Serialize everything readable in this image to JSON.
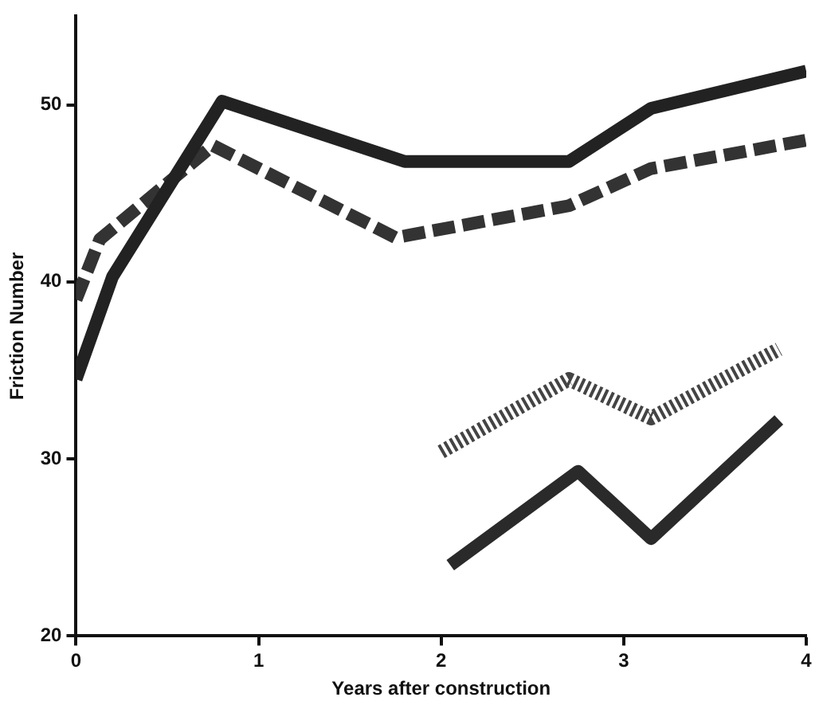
{
  "chart_data": {
    "type": "line",
    "xlabel": "Years after construction",
    "ylabel": "Friction Number",
    "xlim": [
      0,
      4
    ],
    "xticks": [
      0,
      1,
      2,
      3,
      4
    ],
    "ylim": [
      20,
      55
    ],
    "yticks": [
      20,
      30,
      40,
      50
    ],
    "grid": false,
    "legend": false,
    "marker": "none",
    "series": [
      {
        "color": "#222222",
        "line_style": "solid",
        "x": [
          0,
          0.2,
          0.8,
          1.8,
          2.7,
          3.15,
          4
        ],
        "values": [
          34.5,
          40.3,
          50.2,
          46.8,
          46.8,
          49.8,
          51.9
        ]
      },
      {
        "color": "#333333",
        "line_style": "dashed",
        "x": [
          0,
          0.13,
          0.75,
          1.75,
          2.7,
          3.15,
          4
        ],
        "values": [
          39,
          42.4,
          47.7,
          42.5,
          44.3,
          46.4,
          48
        ]
      },
      {
        "color": "#444444",
        "line_style": "dotted",
        "x": [
          2,
          2.7,
          3.15,
          3.85
        ],
        "values": [
          30.4,
          34.5,
          32.3,
          36.2
        ]
      },
      {
        "color": "#2a2a2a",
        "line_style": "solid",
        "x": [
          2.05,
          2.75,
          3.15,
          3.85
        ],
        "values": [
          24,
          29.3,
          25.5,
          32.2
        ]
      }
    ]
  }
}
